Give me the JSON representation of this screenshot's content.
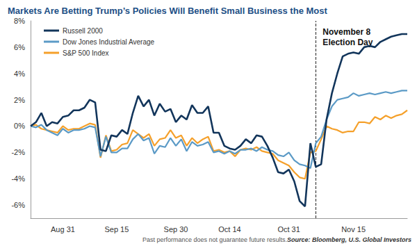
{
  "chart_data": {
    "type": "line",
    "title": "Markets Are Betting Trump’s Policies Will Benefit Small Business the Most",
    "categories": [
      null,
      null,
      null,
      null,
      null,
      null,
      "Aug 31",
      null,
      null,
      null,
      null,
      null,
      null,
      null,
      null,
      null,
      "Sep 15",
      null,
      null,
      null,
      null,
      null,
      null,
      null,
      null,
      null,
      null,
      "Sep 30",
      null,
      null,
      null,
      null,
      null,
      null,
      null,
      null,
      null,
      "Oct 14",
      null,
      null,
      null,
      null,
      null,
      null,
      null,
      null,
      null,
      null,
      "Oct 31",
      null,
      null,
      null,
      null,
      null,
      null,
      null,
      null,
      null,
      null,
      null,
      "Nov 15",
      null,
      null,
      null,
      null,
      null,
      null,
      null,
      null,
      null,
      null
    ],
    "series": [
      {
        "name": "Russell 2000",
        "color": "#12355b",
        "values": [
          0,
          0.3,
          1.0,
          0.0,
          0.3,
          0.2,
          0.7,
          0.8,
          1.2,
          1.2,
          1.4,
          2.0,
          1.8,
          -1.8,
          -1.9,
          -0.7,
          -0.8,
          -0.3,
          -0.6,
          1.0,
          2.3,
          1.5,
          2.0,
          0.8,
          1.7,
          1.1,
          1.3,
          0.3,
          0.8,
          0.5,
          1.6,
          1.0,
          1.0,
          1.5,
          -0.5,
          -0.5,
          -1.5,
          -1.7,
          -1.8,
          -1.5,
          -1.0,
          -1.3,
          -0.7,
          -0.8,
          -1.5,
          -2.4,
          -3.5,
          -3.6,
          -3.3,
          -4.2,
          -5.7,
          -6.1,
          -1.3,
          -3.1,
          -2.9,
          0.5,
          2.5,
          4.0,
          5.3,
          5.5,
          5.6,
          5.5,
          6.0,
          6.1,
          6.0,
          6.4,
          6.6,
          6.8,
          6.9,
          7.0,
          7.0
        ]
      },
      {
        "name": "Dow Jones Industrial Average",
        "color": "#5b9ac6",
        "values": [
          0,
          -0.1,
          0.1,
          -0.3,
          -0.5,
          -0.7,
          -0.2,
          -0.5,
          -0.3,
          -0.3,
          -0.2,
          0.0,
          -0.1,
          -2.3,
          -0.8,
          -2.0,
          -2.0,
          -1.7,
          -1.7,
          -1.0,
          -0.6,
          -1.1,
          -0.9,
          -2.1,
          -1.5,
          -1.6,
          -0.9,
          -1.5,
          -1.0,
          -1.9,
          -1.2,
          -1.5,
          -1.4,
          -1.2,
          -2.0,
          -1.9,
          -2.1,
          -1.9,
          -2.1,
          -1.8,
          -1.8,
          -1.7,
          -1.9,
          -1.6,
          -1.8,
          -1.9,
          -2.2,
          -2.3,
          -2.0,
          -2.6,
          -2.9,
          -3.0,
          -3.2,
          -1.3,
          -0.8,
          0.5,
          1.5,
          2.0,
          2.1,
          2.2,
          2.5,
          2.3,
          2.4,
          2.5,
          2.4,
          2.5,
          2.6,
          2.5,
          2.6,
          2.7,
          2.7
        ]
      },
      {
        "name": "S&P 500 Index",
        "color": "#f5a02a",
        "values": [
          0,
          0.1,
          -0.2,
          -0.3,
          -0.4,
          -0.5,
          0.0,
          -0.3,
          -0.2,
          -0.2,
          0.0,
          0.2,
          0.1,
          -2.4,
          -0.7,
          -1.9,
          -1.8,
          -1.4,
          -1.3,
          -0.3,
          -0.6,
          -0.9,
          -0.6,
          -1.5,
          -1.0,
          -0.9,
          -0.3,
          -0.9,
          -0.7,
          -1.5,
          -0.9,
          -1.3,
          -1.0,
          -0.8,
          -1.9,
          -1.8,
          -2.0,
          -1.9,
          -2.3,
          -1.8,
          -1.7,
          -1.8,
          -1.6,
          -1.9,
          -2.0,
          -2.1,
          -2.6,
          -2.8,
          -3.0,
          -3.5,
          -3.9,
          -4.0,
          -2.0,
          -1.9,
          -1.0,
          0.0,
          -0.2,
          -0.3,
          -0.5,
          -0.4,
          -0.4,
          0.3,
          0.3,
          0.2,
          0.7,
          0.5,
          0.8,
          0.6,
          0.8,
          0.9,
          1.2
        ]
      }
    ],
    "ylim": [
      -7,
      8
    ],
    "yticks": [
      {
        "value": -6,
        "label": "-6%"
      },
      {
        "value": -4,
        "label": "-4%"
      },
      {
        "value": -2,
        "label": "-2%"
      },
      {
        "value": 0,
        "label": "0%"
      },
      {
        "value": 2,
        "label": "2%"
      },
      {
        "value": 4,
        "label": "4%"
      },
      {
        "value": 6,
        "label": "6%"
      },
      {
        "value": 8,
        "label": "8%"
      }
    ],
    "grid": false,
    "legend": "upper left",
    "annotations": [
      {
        "text": [
          "November 8",
          "Election Day"
        ],
        "x": 53
      }
    ],
    "footnote": "Past performance does not guarantee future results.",
    "source": "Source: Bloomberg, U.S. Global Investors"
  }
}
